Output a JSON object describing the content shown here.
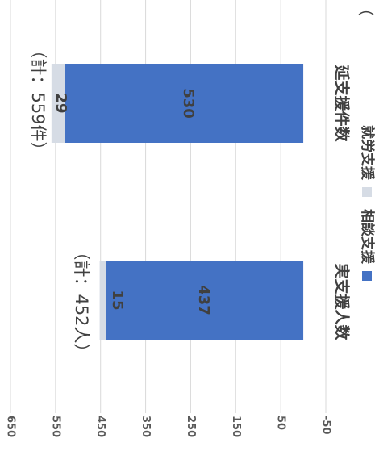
{
  "chart_data": {
    "type": "bar",
    "stacked": true,
    "orientation": "horizontal",
    "rotated_page": "90deg-clockwise",
    "categories": [
      "実支援人数",
      "延支援件数"
    ],
    "series": [
      {
        "name": "相談支援",
        "values": [
          437,
          530
        ],
        "color": "#4472C4"
      },
      {
        "name": "就労支援",
        "values": [
          15,
          29
        ],
        "color": "#D6DCE5"
      }
    ],
    "totals": [
      "（計：452人）",
      "（計：559件）"
    ],
    "value_axis": {
      "ticks": [
        -50,
        50,
        150,
        250,
        350,
        450,
        550,
        650
      ],
      "range": [
        -50,
        650
      ]
    },
    "grid": true,
    "legend_position": "bottom",
    "corner_fragment": "（",
    "tick_color": "#595959",
    "grid_color": "#D9D9D9"
  }
}
